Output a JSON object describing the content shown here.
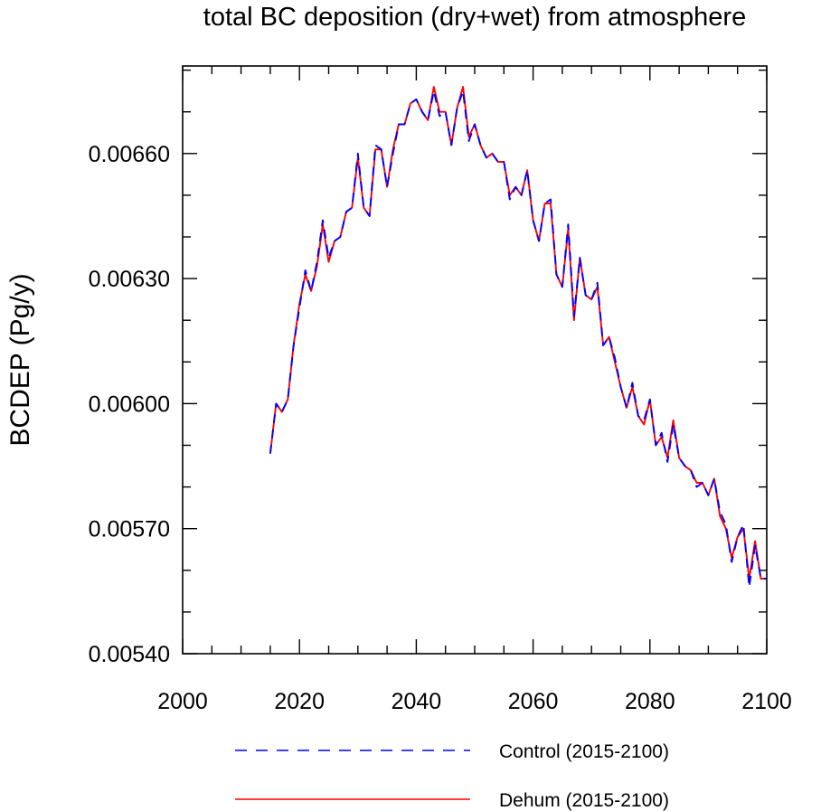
{
  "chart_data": {
    "type": "line",
    "title": "total BC deposition (dry+wet) from atmosphere",
    "ylabel": "BCDEP  (Pg/y)",
    "xlabel": "",
    "xlim": [
      2000,
      2100
    ],
    "ylim": [
      0.0054,
      0.00681
    ],
    "x_ticks": [
      2000,
      2020,
      2040,
      2060,
      2080,
      2100
    ],
    "x_tick_labels": [
      "2000",
      "2020",
      "2040",
      "2060",
      "2080",
      "2100"
    ],
    "y_ticks": [
      0.0054,
      0.0057,
      0.006,
      0.0063,
      0.0066
    ],
    "y_tick_labels": [
      "0.00540",
      "0.00570",
      "0.00600",
      "0.00630",
      "0.00660"
    ],
    "grid": false,
    "legend_position": "bottom",
    "x": [
      2015,
      2016,
      2017,
      2018,
      2019,
      2020,
      2021,
      2022,
      2023,
      2024,
      2025,
      2026,
      2027,
      2028,
      2029,
      2030,
      2031,
      2032,
      2033,
      2034,
      2035,
      2036,
      2037,
      2038,
      2039,
      2040,
      2041,
      2042,
      2043,
      2044,
      2045,
      2046,
      2047,
      2048,
      2049,
      2050,
      2051,
      2052,
      2053,
      2054,
      2055,
      2056,
      2057,
      2058,
      2059,
      2060,
      2061,
      2062,
      2063,
      2064,
      2065,
      2066,
      2067,
      2068,
      2069,
      2070,
      2071,
      2072,
      2073,
      2074,
      2075,
      2076,
      2077,
      2078,
      2079,
      2080,
      2081,
      2082,
      2083,
      2084,
      2085,
      2086,
      2087,
      2088,
      2089,
      2090,
      2091,
      2092,
      2093,
      2094,
      2095,
      2096,
      2097,
      2098,
      2099,
      2100
    ],
    "series": [
      {
        "name": "Control (2015-2100)",
        "color": "#0000ff",
        "style": "dashed",
        "values": [
          0.00588,
          0.006,
          0.00598,
          0.00601,
          0.00614,
          0.00623,
          0.00632,
          0.00627,
          0.00634,
          0.00644,
          0.00635,
          0.00639,
          0.0064,
          0.00646,
          0.00647,
          0.0066,
          0.00647,
          0.00645,
          0.00662,
          0.00661,
          0.00652,
          0.0066,
          0.00667,
          0.00667,
          0.00672,
          0.00673,
          0.0067,
          0.00668,
          0.00675,
          0.00669,
          0.0067,
          0.00662,
          0.00671,
          0.00675,
          0.00663,
          0.00667,
          0.00662,
          0.00659,
          0.0066,
          0.00658,
          0.00658,
          0.00649,
          0.00652,
          0.0065,
          0.00656,
          0.00644,
          0.00639,
          0.00648,
          0.00649,
          0.00631,
          0.00628,
          0.00643,
          0.00621,
          0.00635,
          0.00626,
          0.00625,
          0.00629,
          0.00614,
          0.00616,
          0.00611,
          0.00604,
          0.00599,
          0.00605,
          0.00597,
          0.00596,
          0.00601,
          0.0059,
          0.00593,
          0.00586,
          0.00595,
          0.00587,
          0.00585,
          0.00584,
          0.0058,
          0.00581,
          0.00578,
          0.00582,
          0.00574,
          0.00571,
          0.00562,
          0.00568,
          0.00571,
          0.00556,
          0.00566,
          0.00558,
          0.00558
        ]
      },
      {
        "name": "Dehum (2015-2100)",
        "color": "#ff0000",
        "style": "solid",
        "values": [
          0.00588,
          0.006,
          0.00598,
          0.00601,
          0.00614,
          0.00624,
          0.00631,
          0.00627,
          0.00633,
          0.00643,
          0.00634,
          0.00639,
          0.0064,
          0.00646,
          0.00647,
          0.00659,
          0.00647,
          0.00645,
          0.00661,
          0.00661,
          0.00652,
          0.00661,
          0.00667,
          0.00667,
          0.00672,
          0.00673,
          0.0067,
          0.00668,
          0.00676,
          0.0067,
          0.0067,
          0.00662,
          0.00671,
          0.00676,
          0.00664,
          0.00667,
          0.00662,
          0.00659,
          0.0066,
          0.00658,
          0.00658,
          0.0065,
          0.00652,
          0.0065,
          0.00656,
          0.00644,
          0.00639,
          0.00648,
          0.00648,
          0.00631,
          0.00628,
          0.00642,
          0.0062,
          0.00635,
          0.00626,
          0.00625,
          0.00628,
          0.00614,
          0.00616,
          0.0061,
          0.00604,
          0.00599,
          0.00604,
          0.00597,
          0.00595,
          0.00601,
          0.0059,
          0.00592,
          0.00587,
          0.00596,
          0.00587,
          0.00585,
          0.00584,
          0.00581,
          0.00581,
          0.00578,
          0.00582,
          0.00573,
          0.0057,
          0.00563,
          0.00568,
          0.0057,
          0.00558,
          0.00567,
          0.00558,
          0.00558
        ]
      }
    ]
  }
}
